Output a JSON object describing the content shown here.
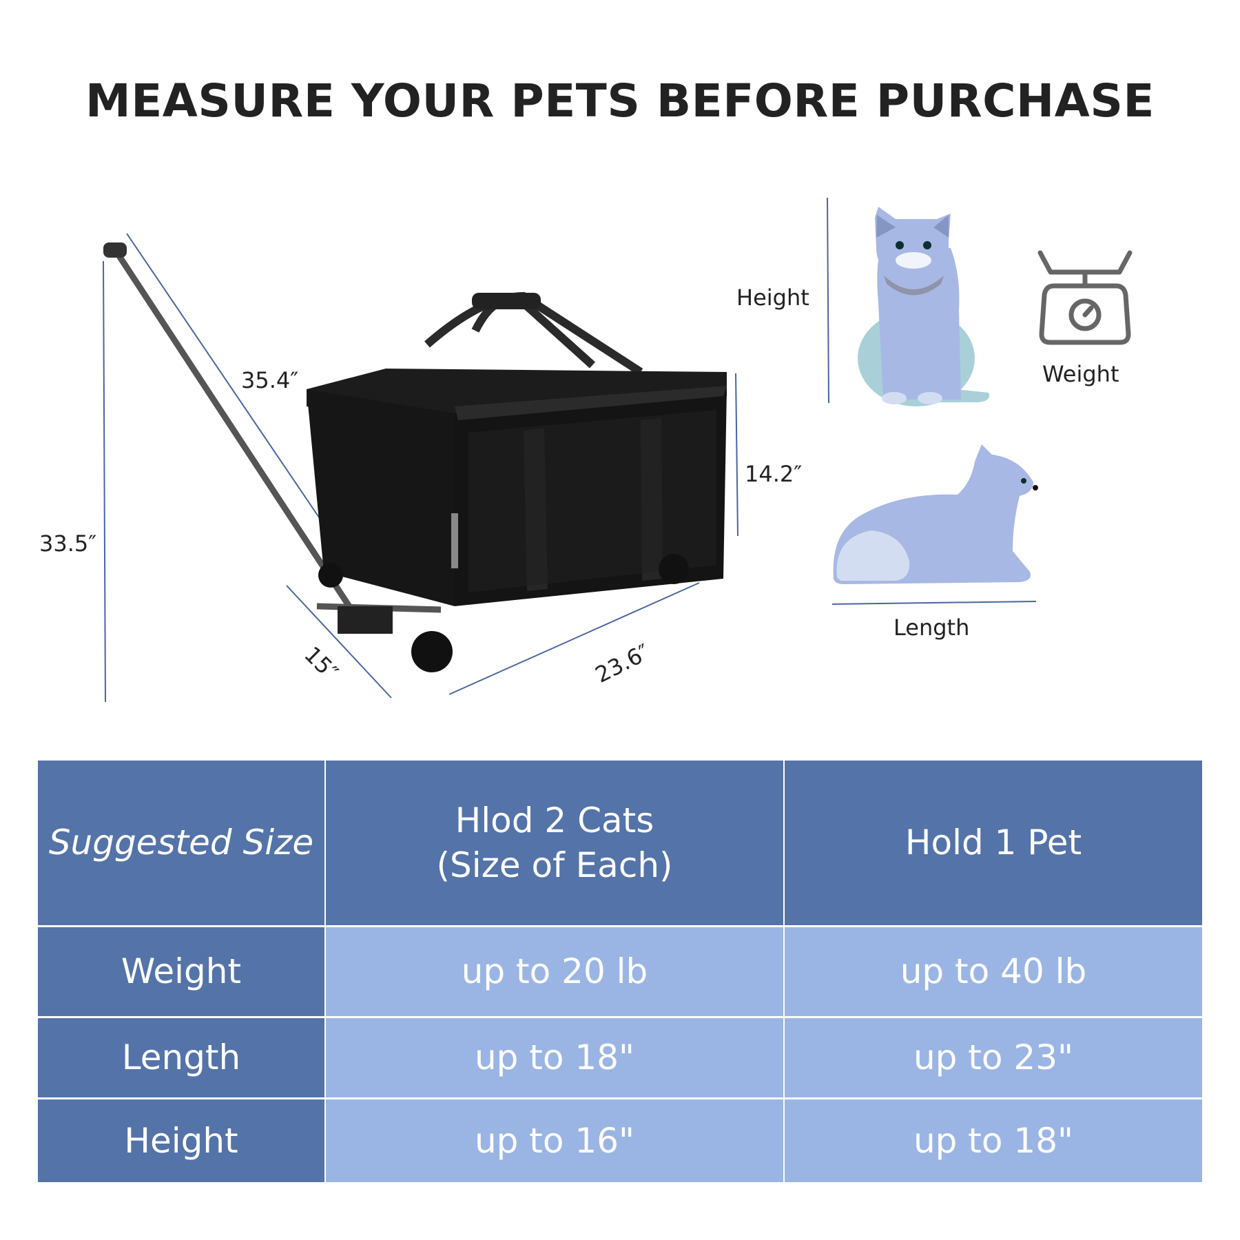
{
  "title": "MEASURE YOUR PETS BEFORE PURCHASE",
  "product_dimensions": {
    "total_height": "33.5″",
    "handle_length": "35.4″",
    "bag_height": "14.2″",
    "depth": "15″",
    "length": "23.6″"
  },
  "pet_measure": {
    "height_label": "Height",
    "weight_label": "Weight",
    "length_label": "Length",
    "icons": [
      "sitting-cat",
      "kitchen-scale",
      "lying-cat"
    ]
  },
  "size_table": {
    "header": [
      "Suggested Size",
      "Hlod 2 Cats\n(Size of Each)",
      "Hold 1 Pet"
    ],
    "rows": [
      {
        "label": "Weight",
        "two_cats": "up to 20 lb",
        "one_pet": "up to 40 lb"
      },
      {
        "label": "Length",
        "two_cats": "up to 18\"",
        "one_pet": "up to 23\""
      },
      {
        "label": "Height",
        "two_cats": "up to 16\"",
        "one_pet": "up to 18\""
      }
    ]
  },
  "colors": {
    "header": "#5473a8",
    "cell": "#9ab5e3",
    "dimension_line": "#4a64a0",
    "cat": "#a8b8e4"
  }
}
